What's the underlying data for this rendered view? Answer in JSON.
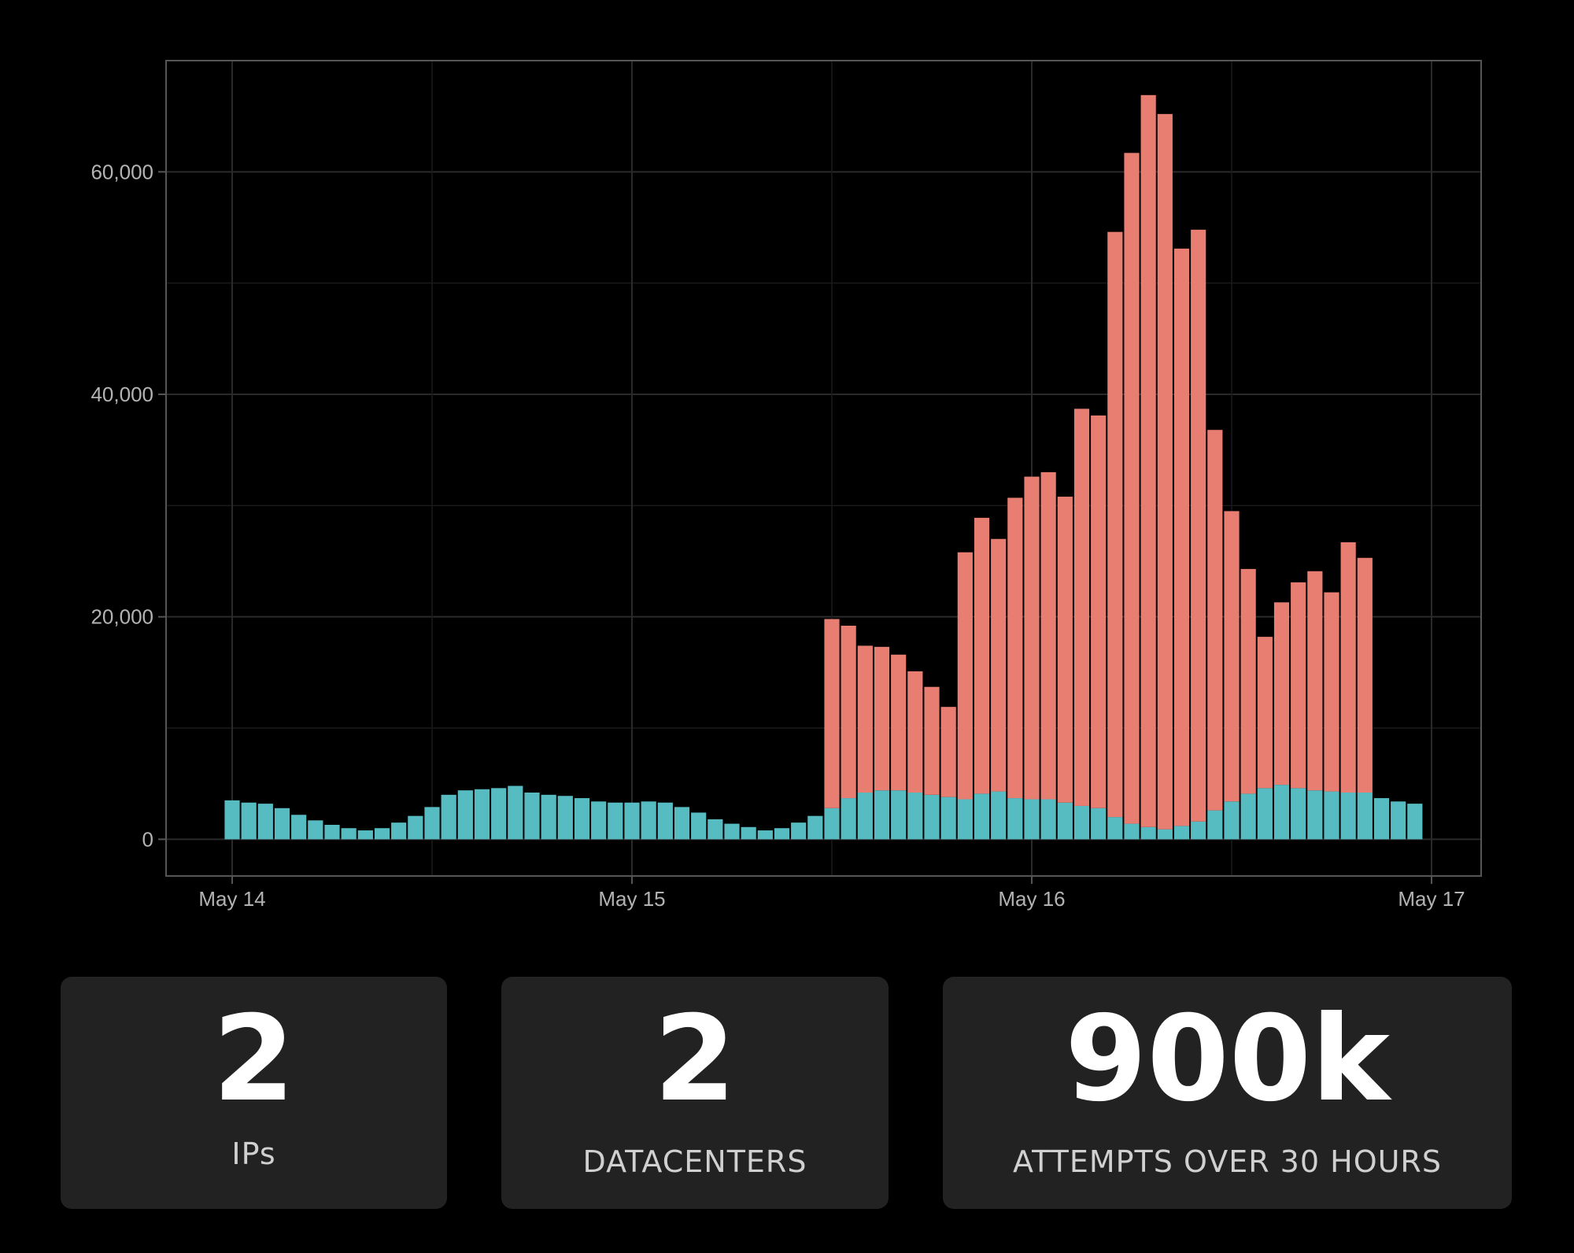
{
  "chart_data": {
    "type": "bar",
    "stacked": true,
    "x_ticks": [
      "May 14",
      "May 15",
      "May 16",
      "May 17"
    ],
    "y_ticks": [
      "0",
      "20,000",
      "40,000",
      "60,000"
    ],
    "ylim": [
      -3300,
      70000
    ],
    "grid": true,
    "colors": {
      "teal": "#56bcc2",
      "salmon": "#e87d72",
      "background": "#000000",
      "grid": "#2a2a2a",
      "frame": "#555555"
    },
    "series": [
      {
        "name": "",
        "color": "#56bcc2",
        "values": [
          3500,
          3300,
          3200,
          2800,
          2200,
          1700,
          1300,
          1000,
          800,
          1000,
          1500,
          2100,
          2900,
          4000,
          4400,
          4500,
          4600,
          4800,
          4200,
          4000,
          3900,
          3700,
          3400,
          3300,
          3300,
          3400,
          3300,
          2900,
          2400,
          1800,
          1400,
          1100,
          800,
          1000,
          1500,
          2100,
          2800,
          3700,
          4200,
          4400,
          4400,
          4200,
          4000,
          3800,
          3600,
          4100,
          4300,
          3700,
          3600,
          3600,
          3300,
          3000,
          2800,
          2000,
          1400,
          1100,
          900,
          1200,
          1600,
          2600,
          3400,
          4100,
          4600,
          4900,
          4600,
          4400,
          4300,
          4200,
          4200,
          3700,
          3400,
          3200
        ]
      },
      {
        "name": "",
        "color": "#e87d72",
        "values": [
          0,
          0,
          0,
          0,
          0,
          0,
          0,
          0,
          0,
          0,
          0,
          0,
          0,
          0,
          0,
          0,
          0,
          0,
          0,
          0,
          0,
          0,
          0,
          0,
          0,
          0,
          0,
          0,
          0,
          0,
          0,
          0,
          0,
          0,
          0,
          0,
          17000,
          15500,
          13200,
          12900,
          12200,
          10900,
          9700,
          8100,
          22200,
          24800,
          22700,
          27000,
          29000,
          29400,
          27500,
          35700,
          35300,
          52600,
          60300,
          65800,
          64300,
          51900,
          53200,
          34200,
          26100,
          20200,
          13600,
          16400,
          18500,
          19700,
          17900,
          22500,
          21100,
          0,
          0,
          0
        ]
      }
    ]
  },
  "stats": [
    {
      "value": "2",
      "label": "IPs"
    },
    {
      "value": "2",
      "label": "DATACENTERS"
    },
    {
      "value": "900k",
      "label": "ATTEMPTS OVER 30 HOURS"
    }
  ]
}
